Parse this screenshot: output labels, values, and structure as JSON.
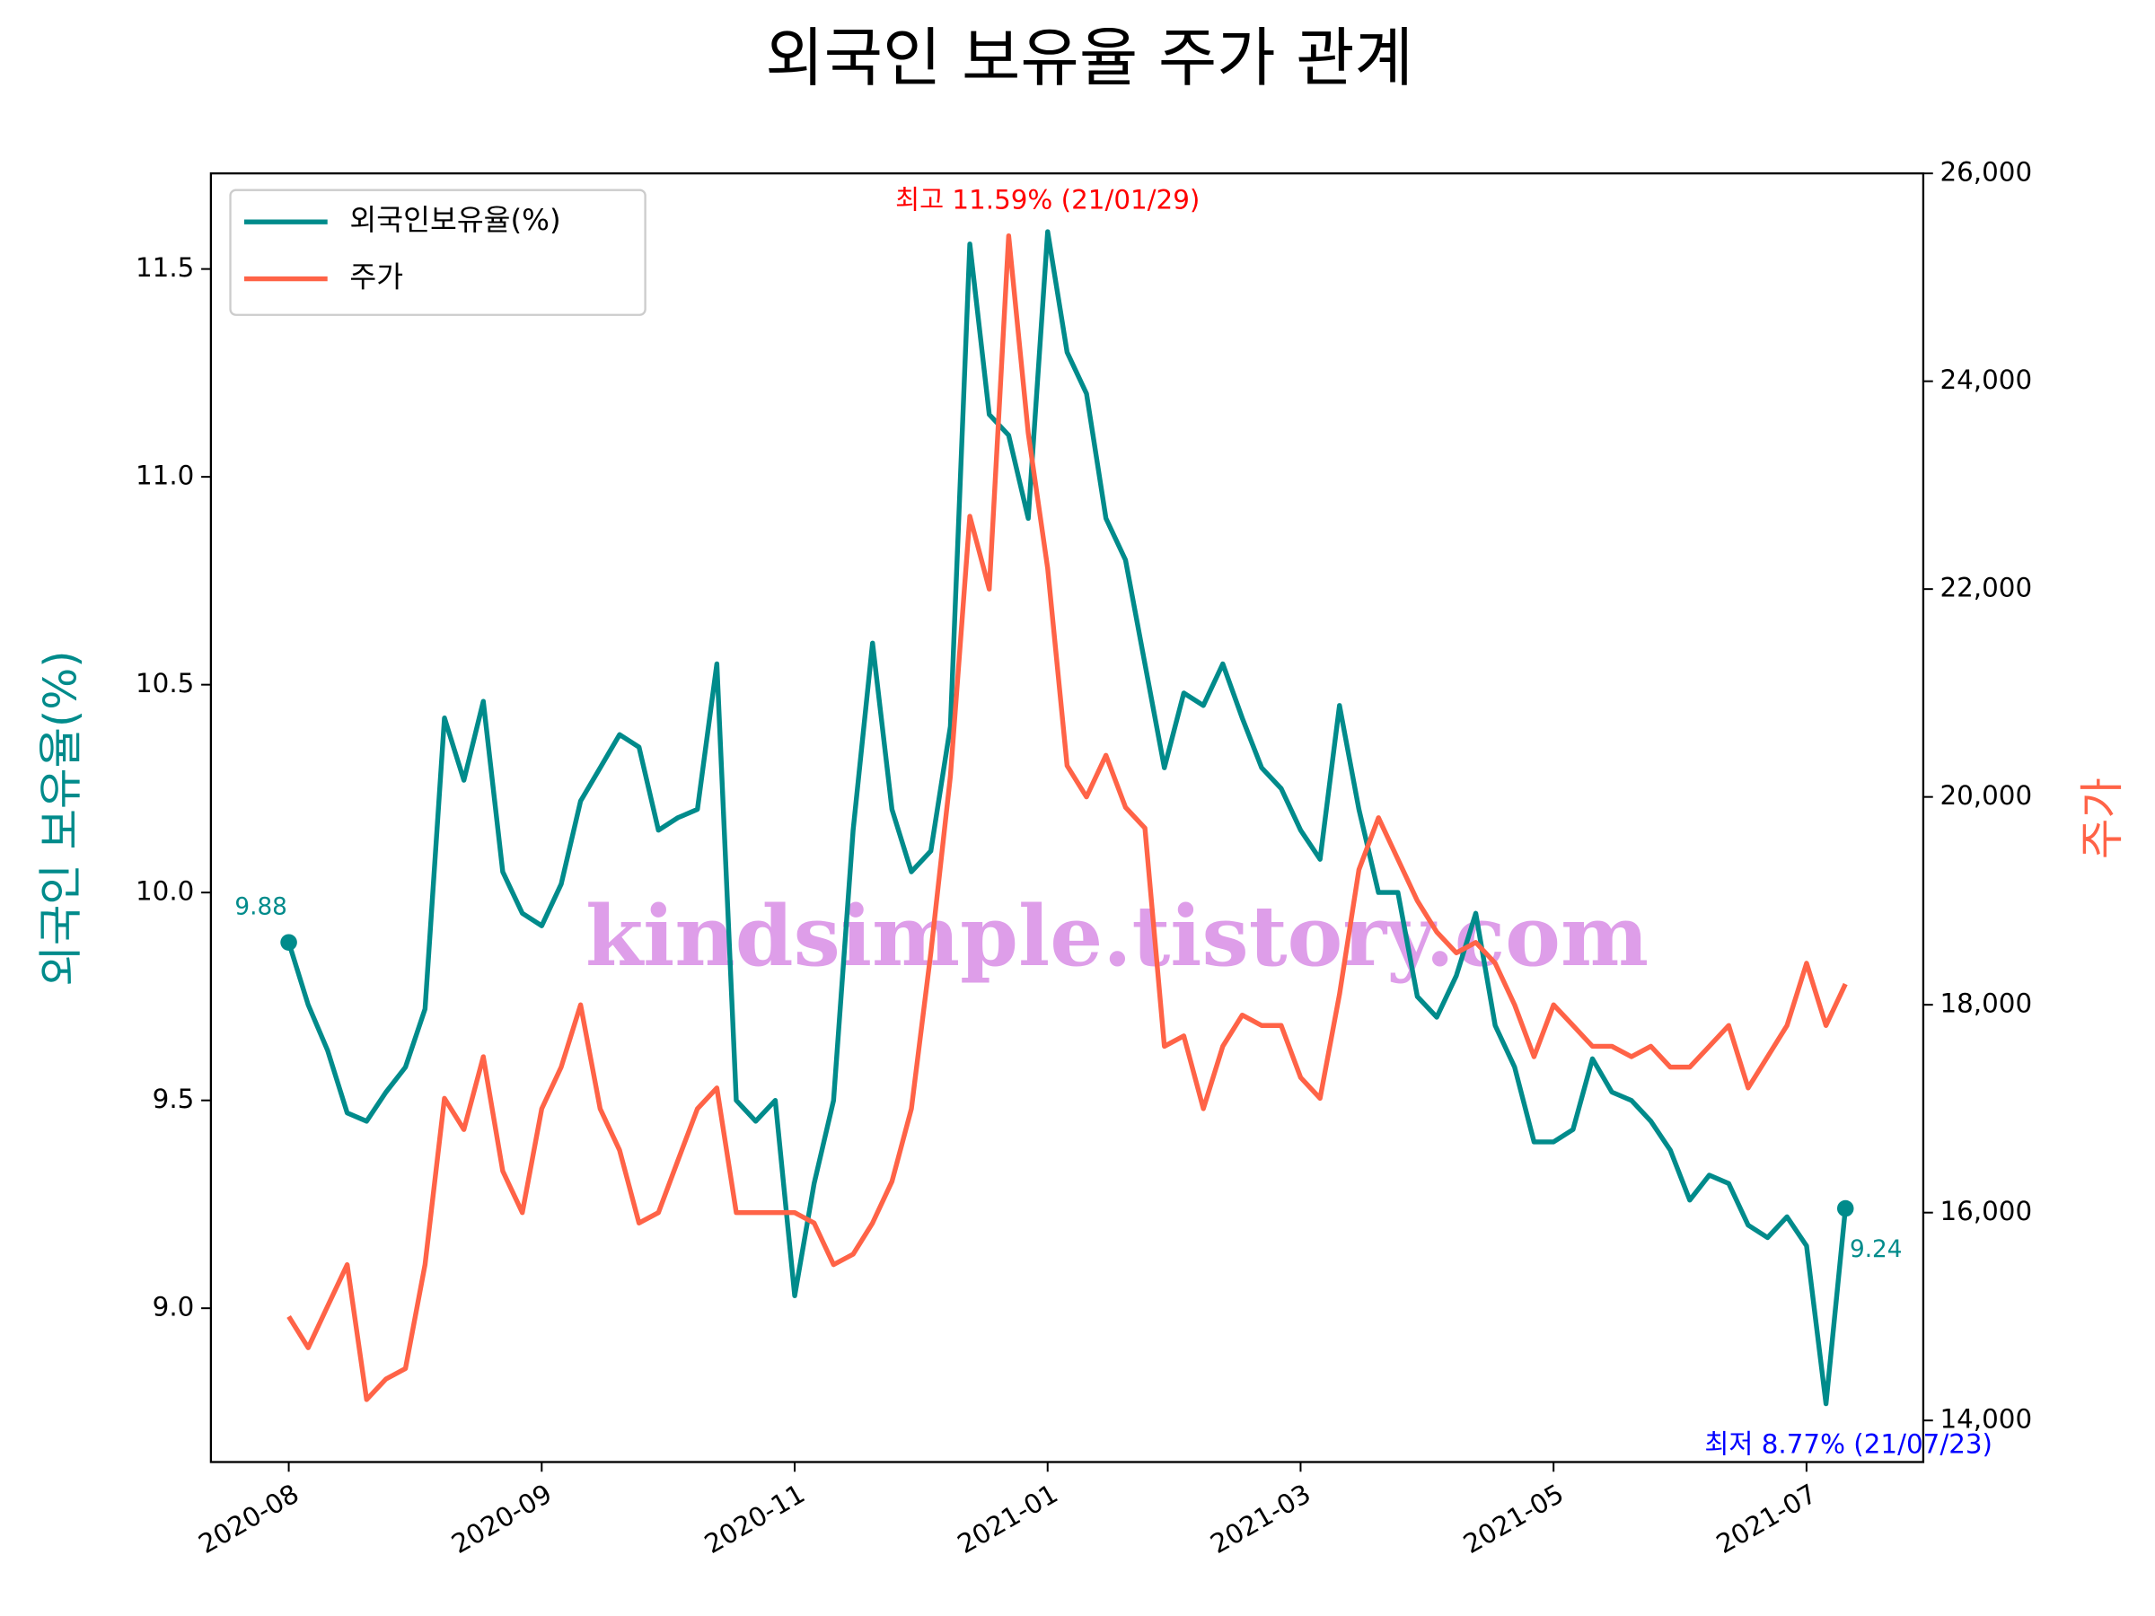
{
  "chart_data": {
    "type": "line",
    "title": "외국인 보유율 주가 관계",
    "ylabel": "외국인 보유율(%)",
    "y2label": "주가",
    "watermark": "kindsimple.tistory.com",
    "legend": "upper left",
    "xlim": [
      -4,
      84
    ],
    "xticks": [
      {
        "value": 0,
        "label": "2020-08"
      },
      {
        "value": 13,
        "label": "2020-09"
      },
      {
        "value": 26,
        "label": "2020-11"
      },
      {
        "value": 39,
        "label": "2021-01"
      },
      {
        "value": 52,
        "label": "2021-03"
      },
      {
        "value": 65,
        "label": "2021-05"
      },
      {
        "value": 78,
        "label": "2021-07"
      }
    ],
    "ylim": [
      8.63,
      11.73
    ],
    "yticks": [
      {
        "value": 9,
        "label": "9.0"
      },
      9.5,
      {
        "value": 10,
        "label": "10.0"
      },
      10.5,
      {
        "value": 11,
        "label": "11.0"
      },
      11.5
    ],
    "y2lim": [
      13600,
      26000
    ],
    "y2ticks": [
      {
        "value": 14000,
        "label": "14,000"
      },
      {
        "value": 16000,
        "label": "16,000"
      },
      {
        "value": 18000,
        "label": "18,000"
      },
      {
        "value": 20000,
        "label": "20,000"
      },
      {
        "value": 22000,
        "label": "22,000"
      },
      {
        "value": 24000,
        "label": "24,000"
      },
      {
        "value": 26000,
        "label": "26,000"
      }
    ],
    "series": [
      {
        "name": "외국인보유율(%)",
        "color": "#008b8b",
        "values": [
          9.88,
          9.73,
          9.62,
          9.47,
          9.45,
          9.52,
          9.58,
          9.72,
          10.42,
          10.27,
          10.46,
          10.05,
          9.95,
          9.92,
          10.02,
          10.22,
          10.3,
          10.38,
          10.35,
          10.15,
          10.18,
          10.2,
          10.55,
          9.5,
          9.45,
          9.5,
          9.03,
          9.3,
          9.5,
          10.15,
          10.6,
          10.2,
          10.05,
          10.1,
          10.4,
          11.56,
          11.15,
          11.1,
          10.9,
          11.59,
          11.3,
          11.2,
          10.9,
          10.8,
          10.55,
          10.3,
          10.48,
          10.45,
          10.55,
          10.42,
          10.3,
          10.25,
          10.15,
          10.08,
          10.45,
          10.2,
          10.0,
          10.0,
          9.75,
          9.7,
          9.8,
          9.95,
          9.68,
          9.58,
          9.4,
          9.4,
          9.43,
          9.6,
          9.52,
          9.5,
          9.45,
          9.38,
          9.26,
          9.32,
          9.3,
          9.2,
          9.17,
          9.22,
          9.15,
          8.77,
          9.24
        ]
      },
      {
        "name": "주가",
        "color": "#ff6347",
        "axis": "y2",
        "values": [
          15000,
          14700,
          15100,
          15500,
          14200,
          14400,
          14500,
          15500,
          17100,
          16800,
          17500,
          16400,
          16000,
          17000,
          17400,
          18000,
          17000,
          16600,
          15900,
          16000,
          16500,
          17000,
          17200,
          16000,
          16000,
          16000,
          16000,
          15900,
          15500,
          15600,
          15900,
          16300,
          17000,
          18500,
          20200,
          22700,
          22000,
          25400,
          23500,
          22200,
          20300,
          20000,
          20400,
          19900,
          19700,
          17600,
          17700,
          17000,
          17600,
          17900,
          17800,
          17800,
          17300,
          17100,
          18100,
          19300,
          19800,
          19400,
          19000,
          18700,
          18500,
          18600,
          18400,
          18000,
          17500,
          18000,
          17800,
          17600,
          17600,
          17500,
          17600,
          17400,
          17400,
          17600,
          17800,
          17200,
          17500,
          17800,
          18400,
          17800,
          18200
        ]
      }
    ],
    "annotations": [
      {
        "text": "최고 11.59% (21/01/29)",
        "color": "#ff0000"
      },
      {
        "text": "최저 8.77% (21/07/23)",
        "color": "#0000ff"
      }
    ]
  }
}
